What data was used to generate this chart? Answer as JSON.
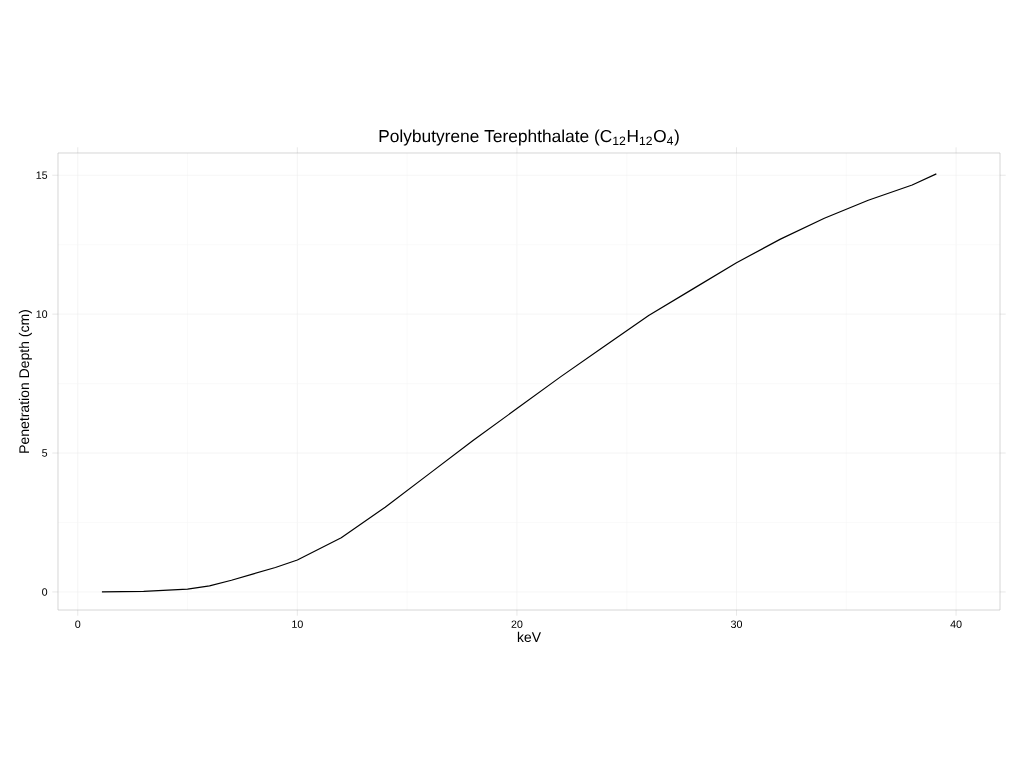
{
  "chart_data": {
    "type": "line",
    "title": "Polybutyrene Terephthalate (C$_{12}$H$_{12}$O$_{4}$)",
    "xlabel": "keV",
    "ylabel": "Penetration Depth (cm)",
    "x": [
      1.1,
      3,
      5,
      6,
      7,
      8,
      9,
      10,
      12,
      14,
      16,
      18,
      20,
      22,
      24,
      26,
      28,
      30,
      32,
      34,
      36,
      38,
      39.1
    ],
    "values": [
      0,
      0.02,
      0.1,
      0.22,
      0.42,
      0.65,
      0.88,
      1.15,
      1.95,
      3.05,
      4.25,
      5.45,
      6.6,
      7.75,
      8.85,
      9.95,
      10.9,
      11.85,
      12.7,
      13.45,
      14.1,
      14.65,
      15.05
    ],
    "color": "#000000",
    "xlim": [
      -0.9,
      42
    ],
    "ylim": [
      -0.65,
      15.8
    ],
    "xticks": [
      0,
      10,
      20,
      30,
      40
    ],
    "yticks": [
      0,
      5,
      10,
      15
    ],
    "grid": true
  }
}
